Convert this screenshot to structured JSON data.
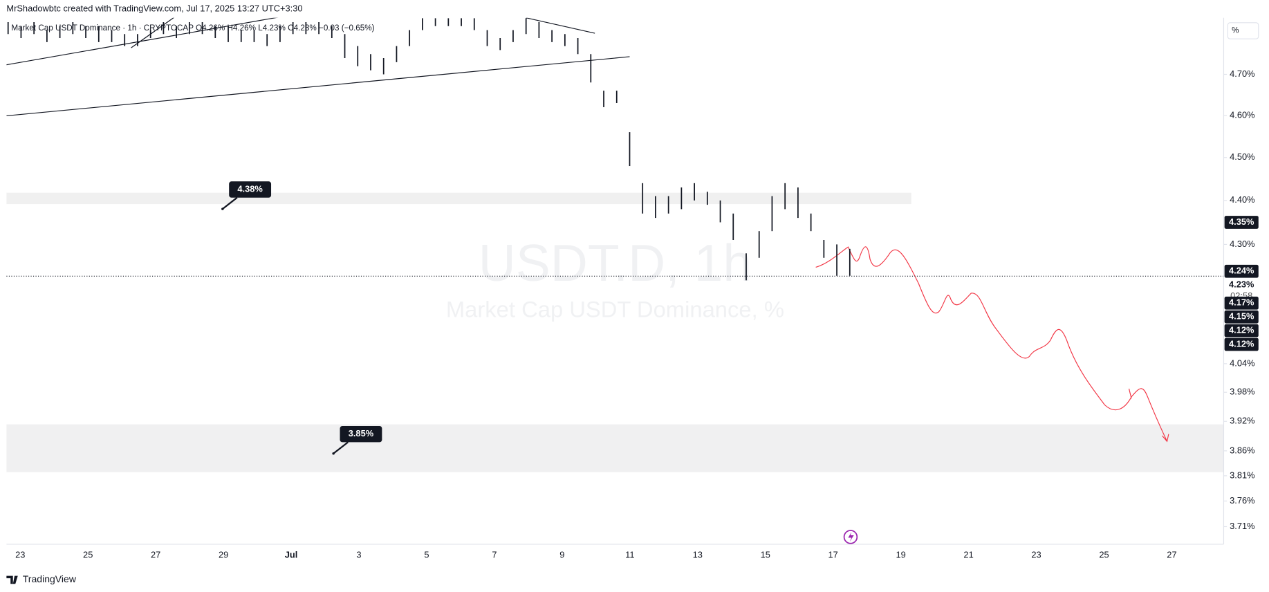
{
  "header": "MrShadowbtc created with TradingView.com, Jul 17, 2025 13:27 UTC+3:30",
  "footer": "TradingView",
  "chart_data": {
    "type": "ohlc",
    "legend": "Market Cap USDT Dominance · 1h · CRYPTOCAP  O4.26% H4.26% L4.23% C4.23% −0.03 (−0.65%)",
    "title": "USDT.D, 1h",
    "subtitle": "Market Cap USDT Dominance, %",
    "unit": "%",
    "log_scale": true,
    "color": "#131722",
    "ylim": [
      3.676,
      4.841
    ],
    "yticks": [
      {
        "value": 4.7,
        "label": "4.70%"
      },
      {
        "value": 4.6,
        "label": "4.60%"
      },
      {
        "value": 4.5,
        "label": "4.50%"
      },
      {
        "value": 4.4,
        "label": "4.40%"
      },
      {
        "value": 4.3,
        "label": "4.30%"
      },
      {
        "value": 4.04,
        "label": "4.04%"
      },
      {
        "value": 3.98,
        "label": "3.98%"
      },
      {
        "value": 3.92,
        "label": "3.92%"
      },
      {
        "value": 3.86,
        "label": "3.86%"
      },
      {
        "value": 3.81,
        "label": "3.81%"
      },
      {
        "value": 3.76,
        "label": "3.76%"
      },
      {
        "value": 3.71,
        "label": "3.71%"
      }
    ],
    "xticks": [
      "23",
      "25",
      "27",
      "29",
      "Jul",
      "3",
      "5",
      "7",
      "9",
      "11",
      "13",
      "15",
      "17",
      "19",
      "21",
      "23",
      "25",
      "27"
    ],
    "high": [
      4.83,
      4.82,
      4.83,
      4.81,
      4.82,
      4.83,
      4.82,
      4.82,
      4.81,
      4.8,
      4.8,
      4.81,
      4.83,
      4.82,
      4.83,
      4.83,
      4.82,
      4.82,
      4.81,
      4.81,
      4.8,
      4.82,
      4.83,
      4.83,
      4.83,
      4.82,
      4.8,
      4.77,
      4.75,
      4.74,
      4.77,
      4.81,
      4.84,
      4.84,
      4.84,
      4.84,
      4.84,
      4.81,
      4.79,
      4.81,
      4.84,
      4.83,
      4.81,
      4.8,
      4.79,
      4.75,
      4.66,
      4.66,
      4.56,
      4.44,
      4.41,
      4.41,
      4.43,
      4.44,
      4.42,
      4.4,
      4.37,
      4.28,
      4.33,
      4.41,
      4.44,
      4.43,
      4.37,
      4.31,
      4.3,
      4.29
    ],
    "low": [
      4.8,
      4.79,
      4.8,
      4.78,
      4.79,
      4.8,
      4.79,
      4.78,
      4.78,
      4.77,
      4.77,
      4.79,
      4.8,
      4.79,
      4.8,
      4.8,
      4.79,
      4.78,
      4.78,
      4.78,
      4.77,
      4.78,
      4.8,
      4.8,
      4.8,
      4.79,
      4.74,
      4.72,
      4.71,
      4.7,
      4.73,
      4.77,
      4.81,
      4.82,
      4.82,
      4.82,
      4.81,
      4.77,
      4.76,
      4.78,
      4.8,
      4.79,
      4.78,
      4.77,
      4.75,
      4.68,
      4.62,
      4.63,
      4.48,
      4.37,
      4.36,
      4.37,
      4.38,
      4.4,
      4.39,
      4.35,
      4.31,
      4.22,
      4.27,
      4.33,
      4.38,
      4.36,
      4.33,
      4.27,
      4.23,
      4.23
    ],
    "price_labels": [
      {
        "value": 4.35,
        "label": "4.35%"
      },
      {
        "value": 4.24,
        "label": "4.24%"
      },
      {
        "value": 4.23,
        "label": "4.23%"
      },
      {
        "value": 4.17,
        "label": "4.17%"
      },
      {
        "value": 4.15,
        "label": "4.15%"
      },
      {
        "value": 4.12,
        "label": "4.12%"
      },
      {
        "value": 4.12,
        "label": "4.12%"
      }
    ],
    "countdown": "02:58",
    "annotations": [
      {
        "value": 4.38,
        "label": "4.38%"
      },
      {
        "value": 3.85,
        "label": "3.85%"
      }
    ]
  }
}
